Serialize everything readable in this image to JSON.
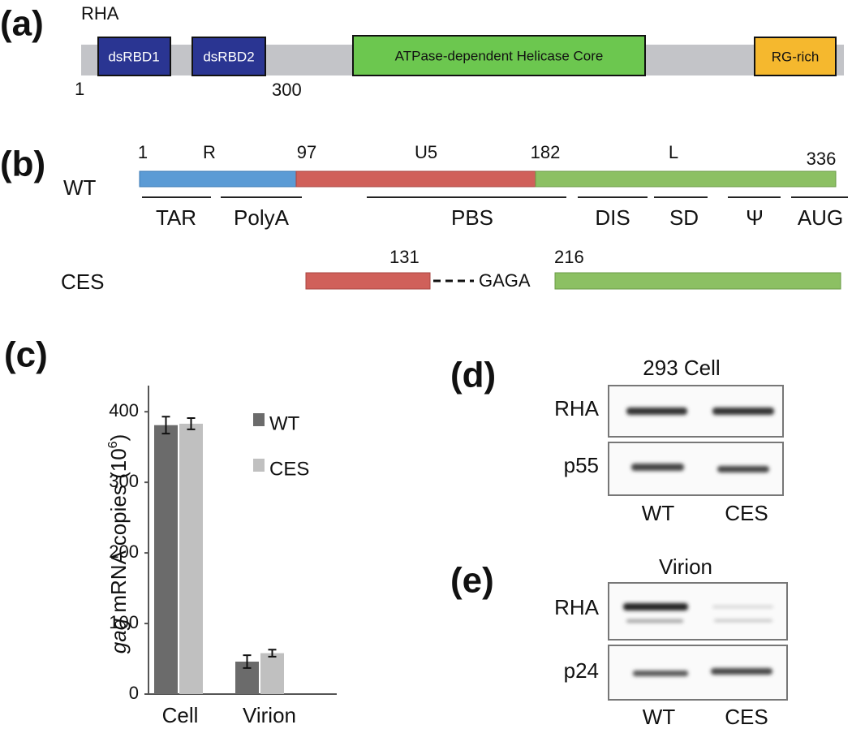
{
  "panel_a": {
    "label": "(a)",
    "protein": "RHA",
    "domains": [
      "dsRBD1",
      "dsRBD2",
      "ATPase-dependent Helicase Core",
      "RG-rich"
    ],
    "positions": [
      "1",
      "300"
    ]
  },
  "panel_b": {
    "label": "(b)",
    "wt": "WT",
    "ces": "CES",
    "wt_numbers": [
      "1",
      "97",
      "182",
      "336"
    ],
    "regions": [
      "R",
      "U5",
      "L"
    ],
    "elements": [
      "TAR",
      "PolyA",
      "PBS",
      "DIS",
      "SD",
      "Ψ",
      "AUG"
    ],
    "ces_numbers": [
      "131",
      "216"
    ],
    "linker": "GAGA"
  },
  "chart_data": {
    "type": "bar",
    "label": "(c)",
    "ylabel": {
      "italic": "gag",
      "text": " mRNA copies (10",
      "sup": "6",
      "close": ")"
    },
    "categories": [
      "Cell",
      "Virion"
    ],
    "series": [
      {
        "name": "WT",
        "color": "#6b6b6b",
        "values": [
          381,
          46
        ],
        "errors": [
          12,
          9
        ]
      },
      {
        "name": "CES",
        "color": "#c0c0c0",
        "values": [
          383,
          58
        ],
        "errors": [
          8,
          5
        ]
      }
    ],
    "ylim": [
      0,
      437
    ],
    "yticks": [
      0,
      100,
      200,
      300,
      400
    ]
  },
  "panel_d": {
    "label": "(d)",
    "title": "293 Cell",
    "rows": [
      "RHA",
      "p55"
    ],
    "lanes": [
      "WT",
      "CES"
    ]
  },
  "panel_e": {
    "label": "(e)",
    "title": "Virion",
    "rows": [
      "RHA",
      "p24"
    ],
    "lanes": [
      "WT",
      "CES"
    ]
  }
}
